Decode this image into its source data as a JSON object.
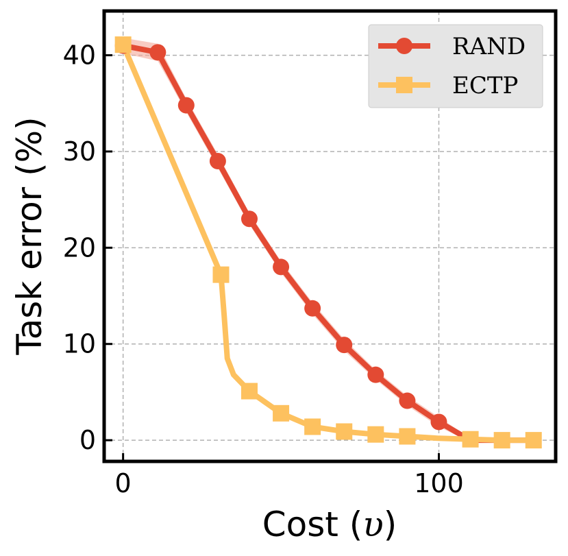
{
  "chart_data": {
    "type": "line",
    "xlabel": "Cost (",
    "xlabel_symbol": "υ",
    "xlabel_close": ")",
    "ylabel": "Task error (%)",
    "xlim": [
      -6,
      137
    ],
    "ylim": [
      -2.2,
      44.6
    ],
    "xticks": [
      0,
      100
    ],
    "yticks": [
      0,
      10,
      20,
      30,
      40
    ],
    "grid": true,
    "legend_position": "top-right",
    "series": [
      {
        "name": "RAND",
        "color": "#e34a33",
        "marker": "circle",
        "band_color": "#f4a89a",
        "x": [
          0,
          11,
          20,
          30,
          40,
          50,
          60,
          70,
          80,
          90,
          100,
          110,
          120,
          130
        ],
        "y": [
          41.0,
          40.3,
          34.8,
          29.0,
          23.0,
          18.0,
          13.7,
          9.9,
          6.8,
          4.1,
          1.9,
          0.0,
          0.0,
          0.0
        ],
        "band": [
          0.8,
          0.9,
          0.7,
          0.7,
          0.6,
          0.6,
          0.6,
          0.6,
          0.5,
          0.5,
          0.5,
          0.2,
          0.1,
          0.1
        ],
        "show_marker": [
          true,
          true,
          true,
          true,
          true,
          true,
          true,
          true,
          true,
          true,
          true,
          false,
          false,
          false
        ]
      },
      {
        "name": "ECTP",
        "color": "#fdc15f",
        "marker": "square",
        "x": [
          0,
          31,
          32,
          33,
          35,
          40,
          50,
          60,
          70,
          80,
          90,
          100,
          110,
          120,
          130
        ],
        "y": [
          41.1,
          17.2,
          13.0,
          8.5,
          6.8,
          5.1,
          2.8,
          1.4,
          0.9,
          0.6,
          0.4,
          0.2,
          0.1,
          0.0,
          0.0
        ],
        "show_marker": [
          true,
          true,
          false,
          false,
          false,
          true,
          true,
          true,
          true,
          true,
          true,
          false,
          true,
          true,
          true
        ]
      }
    ]
  }
}
